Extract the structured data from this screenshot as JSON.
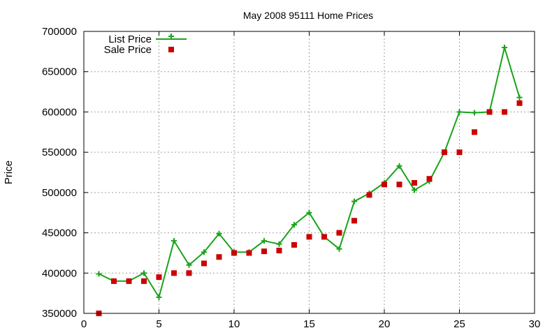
{
  "chart_data": {
    "type": "line",
    "title": "May 2008 95111 Home Prices",
    "xlabel": "",
    "ylabel": "Price",
    "xlim": [
      0,
      30
    ],
    "ylim": [
      350000,
      700000
    ],
    "x_ticks": [
      "0",
      "5",
      "10",
      "15",
      "20",
      "25",
      "30"
    ],
    "y_ticks": [
      "350000",
      "400000",
      "450000",
      "500000",
      "550000",
      "600000",
      "650000",
      "700000"
    ],
    "grid": true,
    "legend_position": "top-left",
    "series": [
      {
        "name": "List Price",
        "style": "line-plus",
        "color": "#1aa31a",
        "points": [
          [
            1,
            399000
          ],
          [
            2,
            390000
          ],
          [
            3,
            390000
          ],
          [
            4,
            400000
          ],
          [
            5,
            370000
          ],
          [
            6,
            440000
          ],
          [
            7,
            410000
          ],
          [
            8,
            426000
          ],
          [
            9,
            449000
          ],
          [
            10,
            426000
          ],
          [
            11,
            426000
          ],
          [
            12,
            440000
          ],
          [
            13,
            436000
          ],
          [
            14,
            460000
          ],
          [
            15,
            475000
          ],
          [
            16,
            445000
          ],
          [
            17,
            430000
          ],
          [
            18,
            489000
          ],
          [
            19,
            499000
          ],
          [
            20,
            512000
          ],
          [
            21,
            533000
          ],
          [
            22,
            503000
          ],
          [
            23,
            514000
          ],
          [
            24,
            550000
          ],
          [
            25,
            600000
          ],
          [
            26,
            599000
          ],
          [
            27,
            600000
          ],
          [
            28,
            680000
          ],
          [
            29,
            618000
          ]
        ]
      },
      {
        "name": "Sale Price",
        "style": "square",
        "color": "#cc0000",
        "points": [
          [
            1,
            350000
          ],
          [
            2,
            390000
          ],
          [
            3,
            390000
          ],
          [
            4,
            390000
          ],
          [
            5,
            395000
          ],
          [
            6,
            400000
          ],
          [
            7,
            400000
          ],
          [
            8,
            412000
          ],
          [
            9,
            420000
          ],
          [
            10,
            425000
          ],
          [
            11,
            425000
          ],
          [
            12,
            427000
          ],
          [
            13,
            428000
          ],
          [
            14,
            435000
          ],
          [
            15,
            445000
          ],
          [
            16,
            445000
          ],
          [
            17,
            450000
          ],
          [
            18,
            465000
          ],
          [
            19,
            497000
          ],
          [
            20,
            510000
          ],
          [
            21,
            510000
          ],
          [
            22,
            512000
          ],
          [
            23,
            517000
          ],
          [
            24,
            550000
          ],
          [
            25,
            550000
          ],
          [
            26,
            575000
          ],
          [
            27,
            600000
          ],
          [
            28,
            600000
          ],
          [
            29,
            611000
          ]
        ]
      }
    ]
  }
}
